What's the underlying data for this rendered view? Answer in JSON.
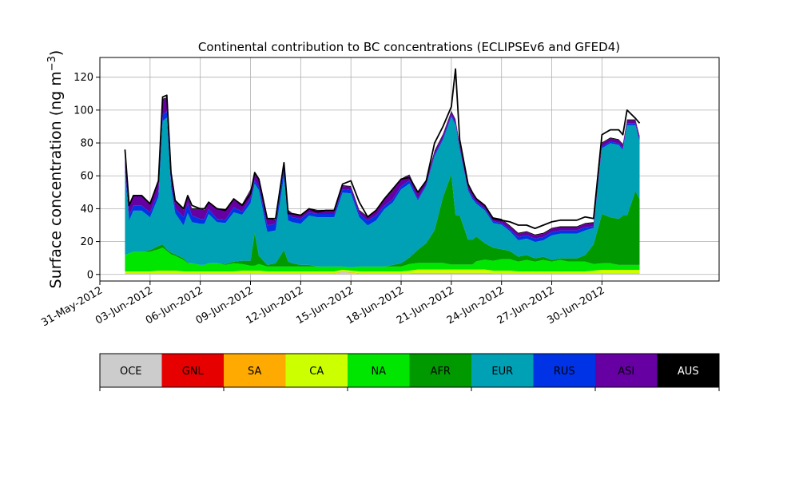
{
  "chart_data": {
    "type": "area",
    "stacked": true,
    "title": "Continental contribution to BC concentrations (ECLIPSEv6 and GFED4)",
    "ylabel": "Surface concentration (ng m",
    "ylabel_superscript": "−3",
    "ylabel_suffix": ")",
    "xlim": [
      "2012-05-31",
      "2012-07-07"
    ],
    "ylim": [
      -4,
      132
    ],
    "y_ticks": [
      0,
      20,
      40,
      60,
      80,
      100,
      120
    ],
    "x_ticks": [
      "2012-05-31",
      "2012-06-03",
      "2012-06-06",
      "2012-06-09",
      "2012-06-12",
      "2012-06-15",
      "2012-06-18",
      "2012-06-21",
      "2012-06-24",
      "2012-06-27",
      "2012-06-30"
    ],
    "x_tick_labels": [
      "31-May-2012",
      "03-Jun-2012",
      "06-Jun-2012",
      "09-Jun-2012",
      "12-Jun-2012",
      "15-Jun-2012",
      "18-Jun-2012",
      "21-Jun-2012",
      "24-Jun-2012",
      "27-Jun-2012",
      "30-Jun-2012"
    ],
    "grid": true,
    "x": [
      "2012-06-01T12:00",
      "2012-06-01T18:00",
      "2012-06-02T00:00",
      "2012-06-02T12:00",
      "2012-06-03T00:00",
      "2012-06-03T12:00",
      "2012-06-03T18:00",
      "2012-06-04T00:00",
      "2012-06-04T06:00",
      "2012-06-04T12:00",
      "2012-06-05T00:00",
      "2012-06-05T06:00",
      "2012-06-05T12:00",
      "2012-06-06T00:00",
      "2012-06-06T06:00",
      "2012-06-06T12:00",
      "2012-06-07T00:00",
      "2012-06-07T12:00",
      "2012-06-08T00:00",
      "2012-06-08T12:00",
      "2012-06-09T00:00",
      "2012-06-09T06:00",
      "2012-06-09T12:00",
      "2012-06-10T00:00",
      "2012-06-10T12:00",
      "2012-06-11T00:00",
      "2012-06-11T06:00",
      "2012-06-11T12:00",
      "2012-06-12T00:00",
      "2012-06-12T12:00",
      "2012-06-13T00:00",
      "2012-06-13T12:00",
      "2012-06-14T00:00",
      "2012-06-14T12:00",
      "2012-06-15T00:00",
      "2012-06-15T12:00",
      "2012-06-16T00:00",
      "2012-06-16T12:00",
      "2012-06-17T00:00",
      "2012-06-17T12:00",
      "2012-06-18T00:00",
      "2012-06-18T12:00",
      "2012-06-19T00:00",
      "2012-06-19T12:00",
      "2012-06-20T00:00",
      "2012-06-20T12:00",
      "2012-06-21T00:00",
      "2012-06-21T06:00",
      "2012-06-21T12:00",
      "2012-06-22T00:00",
      "2012-06-22T06:00",
      "2012-06-22T12:00",
      "2012-06-23T00:00",
      "2012-06-23T12:00",
      "2012-06-24T00:00",
      "2012-06-24T12:00",
      "2012-06-25T00:00",
      "2012-06-25T12:00",
      "2012-06-26T00:00",
      "2012-06-26T12:00",
      "2012-06-27T00:00",
      "2012-06-27T12:00",
      "2012-06-28T00:00",
      "2012-06-28T12:00",
      "2012-06-29T00:00",
      "2012-06-29T12:00",
      "2012-06-30T00:00",
      "2012-06-30T12:00",
      "2012-07-01T00:00",
      "2012-07-01T06:00",
      "2012-07-01T12:00",
      "2012-07-02T00:00",
      "2012-07-02T06:00"
    ],
    "series": [
      {
        "name": "OCE",
        "color": "#cccccc",
        "values": [
          0.5,
          0.5,
          0.5,
          0.5,
          0.5,
          0.5,
          0.5,
          0.5,
          0.5,
          0.5,
          0.5,
          0.5,
          0.5,
          0.5,
          0.5,
          0.5,
          0.5,
          0.5,
          0.5,
          0.5,
          0.5,
          0.5,
          0.5,
          0.5,
          0.5,
          0.5,
          0.5,
          0.5,
          0.5,
          0.5,
          0.5,
          0.5,
          0.5,
          1.5,
          1.0,
          0.5,
          0.5,
          0.5,
          0.5,
          0.5,
          0.5,
          0.5,
          0.5,
          0.5,
          0.5,
          0.5,
          0.5,
          0.5,
          0.5,
          0.5,
          0.5,
          0.5,
          0.5,
          0.5,
          0.5,
          0.5,
          0.5,
          0.5,
          0.5,
          0.5,
          0.5,
          0.5,
          0.5,
          0.5,
          0.5,
          0.5,
          0.5,
          0.5,
          0.5,
          0.5,
          0.5,
          0.5,
          0.5
        ]
      },
      {
        "name": "GNL",
        "color": "#e60000",
        "values": [
          0,
          0,
          0,
          0,
          0,
          0,
          0,
          0,
          0,
          0,
          0,
          0,
          0,
          0,
          0,
          0,
          0,
          0,
          0,
          0,
          0,
          0,
          0,
          0,
          0,
          0,
          0,
          0,
          0,
          0,
          0,
          0,
          0,
          0,
          0,
          0,
          0,
          0,
          0,
          0,
          0,
          0,
          0,
          0,
          0,
          0,
          0,
          0,
          0,
          0,
          0,
          0,
          0,
          0,
          0,
          0,
          0,
          0,
          0,
          0,
          0,
          0,
          0,
          0,
          0,
          0,
          0,
          0,
          0,
          0,
          0,
          0,
          0
        ]
      },
      {
        "name": "SA",
        "color": "#ffaa00",
        "values": [
          0.3,
          0.3,
          0.3,
          0.3,
          0.3,
          0.3,
          0.3,
          0.3,
          0.3,
          0.3,
          0.3,
          0.3,
          0.3,
          0.3,
          0.3,
          0.3,
          0.3,
          0.3,
          0.3,
          0.3,
          0.3,
          0.3,
          0.3,
          0.3,
          0.3,
          0.3,
          0.3,
          0.3,
          0.3,
          0.3,
          0.3,
          0.3,
          0.3,
          0.3,
          0.3,
          0.3,
          0.3,
          0.3,
          0.3,
          0.3,
          0.3,
          0.3,
          0.5,
          0.5,
          0.5,
          0.5,
          0.5,
          0.5,
          0.5,
          0.5,
          0.5,
          0.5,
          0.5,
          0.3,
          0.3,
          0.3,
          0.3,
          0.3,
          0.3,
          0.3,
          0.3,
          0.3,
          0.3,
          0.3,
          0.3,
          0.3,
          0.3,
          0.3,
          0.3,
          0.3,
          0.3,
          0.3,
          0.3
        ]
      },
      {
        "name": "CA",
        "color": "#ccff00",
        "values": [
          1,
          1,
          1,
          1,
          1,
          1.5,
          1.5,
          1.5,
          1.5,
          1.5,
          1,
          1,
          1,
          1,
          1,
          1,
          1,
          1,
          1,
          1.5,
          1.5,
          1.5,
          1.5,
          1,
          1,
          1,
          1,
          1,
          1,
          1,
          1,
          1,
          1,
          1,
          1,
          1,
          1,
          1,
          1,
          1,
          1,
          1.5,
          2,
          2,
          2,
          2,
          2,
          2,
          2,
          2,
          2,
          2,
          2,
          1.5,
          1.5,
          1.5,
          1,
          1,
          1,
          1,
          1,
          1,
          1,
          1,
          1,
          1.5,
          2,
          2,
          2,
          2,
          2,
          2,
          2
        ]
      },
      {
        "name": "NA",
        "color": "#00e600",
        "values": [
          10,
          11,
          12,
          12,
          12,
          13,
          14,
          12,
          10,
          9,
          7,
          5,
          5,
          4,
          4,
          5,
          5,
          4,
          5,
          4,
          3,
          3,
          4,
          3,
          3,
          3,
          3,
          3,
          3,
          3,
          3,
          3,
          3,
          2,
          2,
          3,
          3,
          3,
          3,
          3,
          3,
          4,
          4,
          4,
          4,
          4,
          3,
          3,
          3,
          3,
          3,
          5,
          6,
          6,
          7,
          7,
          6,
          7,
          6,
          7,
          6,
          7,
          6,
          6,
          6,
          4,
          4,
          4,
          3,
          3,
          3,
          3,
          3
        ]
      },
      {
        "name": "AFR",
        "color": "#009900",
        "values": [
          0,
          0,
          0,
          0,
          1,
          2,
          2,
          1,
          1,
          1,
          1,
          0.5,
          0,
          0,
          0,
          0,
          0,
          0.5,
          1,
          2,
          3,
          20,
          5,
          1,
          2,
          10,
          3,
          2,
          1,
          1,
          0,
          0,
          0,
          0,
          0,
          0,
          0,
          0,
          0,
          1,
          2,
          4,
          8,
          12,
          20,
          40,
          55,
          30,
          30,
          15,
          15,
          15,
          10,
          8,
          6,
          5,
          3,
          3,
          2,
          2,
          1,
          1,
          2,
          2,
          4,
          12,
          30,
          28,
          28,
          30,
          30,
          45,
          40
        ]
      },
      {
        "name": "EUR",
        "color": "#00a0b5",
        "values": [
          50,
          20,
          25,
          25,
          20,
          30,
          75,
          80,
          40,
          25,
          20,
          30,
          25,
          25,
          25,
          30,
          25,
          25,
          30,
          28,
          35,
          30,
          40,
          20,
          20,
          45,
          25,
          25,
          25,
          30,
          30,
          30,
          30,
          45,
          45,
          30,
          25,
          28,
          35,
          38,
          45,
          45,
          30,
          35,
          45,
          35,
          35,
          55,
          40,
          30,
          25,
          20,
          20,
          15,
          15,
          12,
          10,
          10,
          10,
          10,
          15,
          15,
          15,
          15,
          15,
          10,
          40,
          45,
          45,
          40,
          55,
          40,
          35
        ]
      },
      {
        "name": "RUS",
        "color": "#0033e6",
        "values": [
          4,
          3,
          3,
          3,
          3,
          3,
          4,
          4,
          3,
          3,
          5,
          6,
          4,
          3,
          3,
          3,
          2,
          2,
          3,
          2,
          3,
          2,
          2,
          4,
          4,
          5,
          4,
          3,
          3,
          2,
          2,
          2,
          2,
          2,
          2,
          2,
          3,
          3,
          2,
          2,
          2,
          2,
          1,
          1,
          1,
          1,
          1,
          1,
          1,
          1,
          1,
          1,
          1,
          1,
          1,
          1,
          2,
          2,
          2,
          2,
          2,
          2,
          2,
          2,
          2,
          1,
          1,
          1,
          1,
          1,
          1,
          1,
          1
        ]
      },
      {
        "name": "ASI",
        "color": "#6600a3",
        "values": [
          8,
          6,
          6,
          6,
          5,
          6,
          9,
          8,
          5,
          4,
          4,
          4,
          4,
          6,
          5,
          4,
          6,
          6,
          5,
          4,
          5,
          4,
          4,
          4,
          2,
          3,
          2,
          2,
          2,
          2,
          2,
          2,
          2,
          2,
          2,
          2,
          2,
          3,
          4,
          5,
          4,
          3,
          3,
          2,
          2,
          2,
          2,
          2,
          2,
          2,
          2,
          2,
          2,
          2,
          2,
          2,
          2,
          2,
          2,
          2,
          2,
          2,
          2,
          2,
          2,
          2,
          2,
          2,
          2,
          2,
          2,
          2,
          2
        ]
      },
      {
        "name": "AUS",
        "color": "#000000",
        "values": [
          0.5,
          0.5,
          0.5,
          0.5,
          0.5,
          0.5,
          0.5,
          0.5,
          0.5,
          0.5,
          0.5,
          0.5,
          0.5,
          0.5,
          0.5,
          0.5,
          0.5,
          0.5,
          0.5,
          0.5,
          0.5,
          0.5,
          0.5,
          0.5,
          0.5,
          0.5,
          0.5,
          0.5,
          0.5,
          0.5,
          0.5,
          0.5,
          0.5,
          0.5,
          0.5,
          0.5,
          0.5,
          0.5,
          0.5,
          0.5,
          0.5,
          0.5,
          0.5,
          0.5,
          0.5,
          0.5,
          0.5,
          0.5,
          0.5,
          0.5,
          0.5,
          0.5,
          0.5,
          0.5,
          0.5,
          0.5,
          0.5,
          0.5,
          0.5,
          0.5,
          0.5,
          0.5,
          0.5,
          0.5,
          0.5,
          0.5,
          0.5,
          0.5,
          0.5,
          0.5,
          0.5,
          0.5,
          0.5
        ]
      }
    ],
    "total": [
      76,
      42,
      48,
      48,
      43,
      57,
      108,
      109,
      62,
      45,
      40,
      48,
      42,
      40,
      40,
      44,
      40,
      39,
      46,
      42,
      49,
      62,
      58,
      34,
      34,
      68,
      37,
      37,
      36,
      40,
      38,
      39,
      39,
      55,
      57,
      44,
      35,
      39,
      46,
      52,
      58,
      59,
      50,
      57,
      80,
      90,
      102,
      125,
      82,
      55,
      50,
      46,
      42,
      34,
      33,
      32,
      30,
      30,
      28,
      30,
      32,
      33,
      33,
      33,
      35,
      34,
      85,
      88,
      88,
      85,
      100,
      95,
      92
    ],
    "legend": {
      "placement": "bottom",
      "style": "colorbar",
      "entries": [
        "OCE",
        "GNL",
        "SA",
        "CA",
        "NA",
        "AFR",
        "EUR",
        "RUS",
        "ASI",
        "AUS"
      ],
      "label_colors": [
        "#000000",
        "#000000",
        "#000000",
        "#000000",
        "#000000",
        "#000000",
        "#000000",
        "#000000",
        "#000000",
        "#ffffff"
      ]
    }
  }
}
